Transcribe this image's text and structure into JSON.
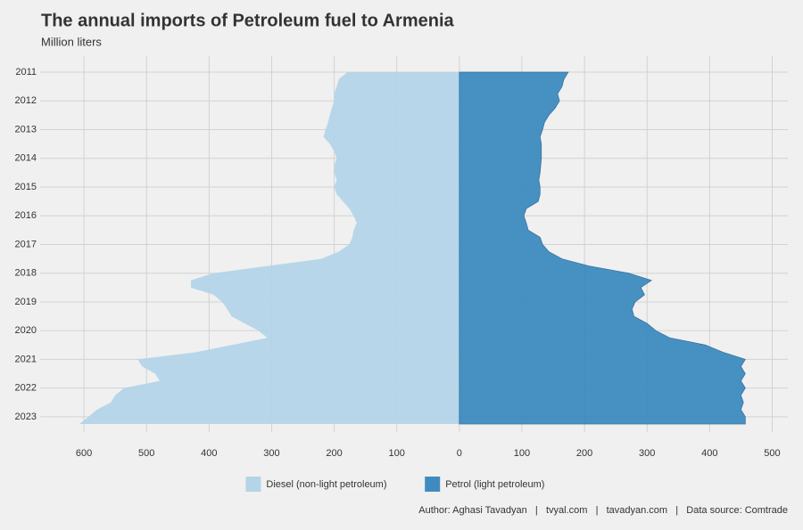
{
  "chart_data": {
    "type": "area",
    "title": "The annual imports of Petroleum fuel to Armenia",
    "subtitle": "Million liters",
    "caption": "Author: Aghasi Tavadyan   |   tvyal.com   |   tavadyan.com   |   Data source: Comtrade",
    "legend": "bottom",
    "grid": true,
    "y": [
      2011,
      2011.25,
      2011.5,
      2011.75,
      2012,
      2012.25,
      2012.5,
      2012.75,
      2013,
      2013.25,
      2013.5,
      2013.75,
      2014,
      2014.25,
      2014.5,
      2014.75,
      2015,
      2015.25,
      2015.5,
      2015.75,
      2016,
      2016.25,
      2016.5,
      2016.75,
      2017,
      2017.25,
      2017.5,
      2017.75,
      2018,
      2018.25,
      2018.5,
      2018.75,
      2019,
      2019.25,
      2019.5,
      2019.75,
      2020,
      2020.25,
      2020.5,
      2020.75,
      2021,
      2021.25,
      2021.5,
      2021.75,
      2022,
      2022.25,
      2022.5,
      2022.75,
      2023,
      2023.25
    ],
    "series": [
      {
        "name": "Diesel (non-light petroleum)",
        "color": "#b4d4e8",
        "values": [
          -179,
          -193,
          -196,
          -200,
          -200,
          -204,
          -207,
          -210,
          -214,
          -217,
          -207,
          -200,
          -196,
          -200,
          -200,
          -196,
          -200,
          -196,
          -186,
          -176,
          -169,
          -164,
          -169,
          -171,
          -176,
          -193,
          -221,
          -307,
          -393,
          -429,
          -429,
          -393,
          -379,
          -371,
          -364,
          -343,
          -321,
          -307,
          -364,
          -421,
          -514,
          -507,
          -486,
          -479,
          -536,
          -550,
          -557,
          -579,
          -593,
          -607
        ]
      },
      {
        "name": "Petrol (light petroleum)",
        "color": "#3f8bc0",
        "values": [
          174,
          167,
          164,
          157,
          160,
          153,
          143,
          136,
          133,
          129,
          131,
          131,
          131,
          130,
          129,
          127,
          129,
          129,
          126,
          107,
          103,
          107,
          110,
          129,
          133,
          143,
          164,
          207,
          271,
          307,
          290,
          296,
          281,
          276,
          279,
          300,
          314,
          336,
          393,
          421,
          457,
          450,
          457,
          450,
          457,
          450,
          454,
          450,
          457,
          457
        ]
      }
    ],
    "xlim": [
      -670,
      525
    ],
    "xticks": [
      {
        "value": -600,
        "label": "600"
      },
      {
        "value": -500,
        "label": "500"
      },
      {
        "value": -400,
        "label": "400"
      },
      {
        "value": -300,
        "label": "300"
      },
      {
        "value": -200,
        "label": "200"
      },
      {
        "value": -100,
        "label": "100"
      },
      0,
      100,
      200,
      300,
      400,
      500
    ],
    "ylim": [
      2010.44,
      2023.53
    ],
    "yticks": [
      2011,
      2012,
      2013,
      2014,
      2015,
      2016,
      2017,
      2018,
      2019,
      2020,
      2021,
      2022,
      2023
    ]
  }
}
